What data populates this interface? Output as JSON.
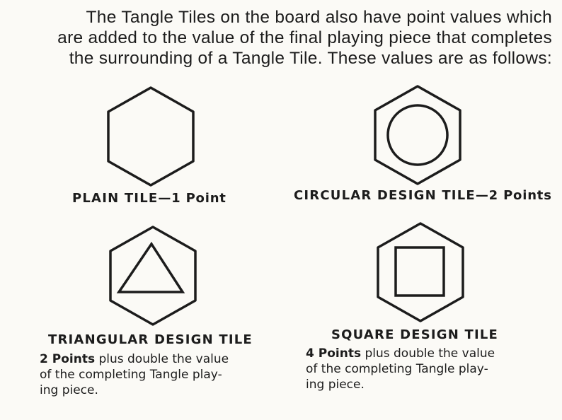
{
  "intro": {
    "lines": [
      "The Tangle Tiles on the board also have point values which",
      "are added to the value of the final playing piece that completes",
      "the surrounding of a Tangle Tile. These values are as follows:"
    ]
  },
  "tiles": {
    "plain": {
      "name": "PLAIN TILE",
      "points": "—1 Point",
      "icon": "hexagon-icon"
    },
    "circular": {
      "name": "CIRCULAR DESIGN TILE",
      "points": "—2 Points",
      "icon": "hexagon-circle-icon"
    },
    "triangular": {
      "name": "TRIANGULAR DESIGN TILE",
      "points": "2 Points",
      "desc": [
        " plus double the value",
        "of the completing Tangle play-",
        "ing piece."
      ],
      "icon": "hexagon-triangle-icon"
    },
    "square": {
      "name": "SQUARE DESIGN TILE",
      "points": "4 Points",
      "desc": [
        " plus double the value",
        "of the completing Tangle play-",
        "ing piece."
      ],
      "icon": "hexagon-square-icon"
    }
  },
  "colors": {
    "ink": "#1c1c1c",
    "paper": "#fbfaf6"
  }
}
